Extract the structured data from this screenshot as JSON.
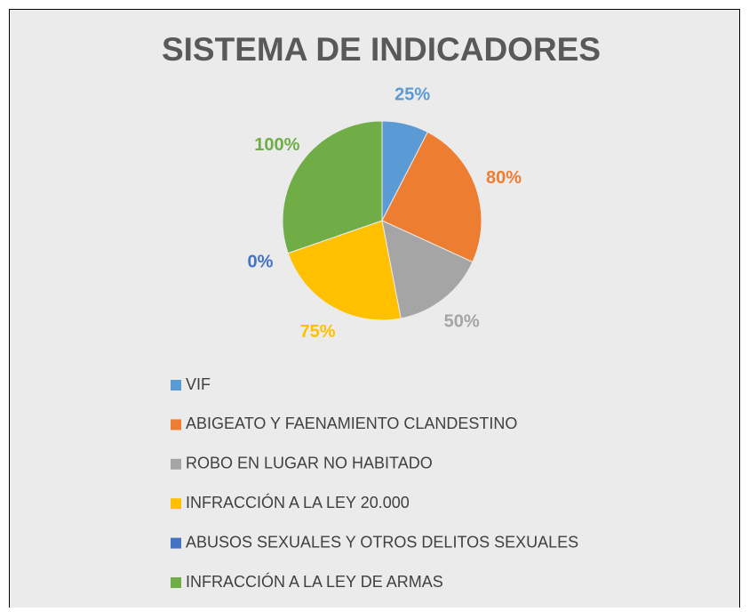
{
  "chart_data": {
    "type": "pie",
    "title": "SISTEMA DE INDICADORES",
    "categories": [
      "VIF",
      "ABIGEATO Y FAENAMIENTO CLANDESTINO",
      "ROBO EN LUGAR NO HABITADO",
      "INFRACCIÓN A LA LEY 20.000",
      "ABUSOS SEXUALES Y OTROS DELITOS SEXUALES",
      "INFRACCIÓN A LA LEY DE ARMAS"
    ],
    "values": [
      25,
      80,
      50,
      75,
      0,
      100
    ],
    "value_labels": [
      "25%",
      "80%",
      "50%",
      "75%",
      "0%",
      "100%"
    ],
    "colors": [
      "#5b9bd5",
      "#ed7d31",
      "#a5a5a5",
      "#ffc000",
      "#4472c4",
      "#70ad47"
    ]
  }
}
